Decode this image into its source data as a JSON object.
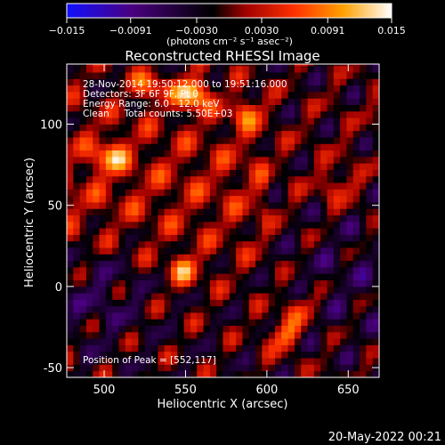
{
  "chart_data": {
    "type": "heatmap",
    "title": "Reconstructed RHESSI Image",
    "xlabel": "Heliocentric X (arcsec)",
    "ylabel": "Heliocentric Y (arcsec)",
    "xlim": [
      477,
      669
    ],
    "ylim": [
      -56,
      137
    ],
    "x_ticks": [
      "500",
      "550",
      "600",
      "650"
    ],
    "x_tick_values": [
      500,
      550,
      600,
      650
    ],
    "y_ticks": [
      "-50",
      "0",
      "50",
      "100"
    ],
    "y_tick_values": [
      -50,
      0,
      50,
      100
    ],
    "colorbar": {
      "ticks": [
        "−0.015",
        "−0.0091",
        "−0.0030",
        "0.0030",
        "0.0091",
        "0.015"
      ],
      "tick_values": [
        -0.015,
        -0.0091,
        -0.003,
        0.003,
        0.0091,
        0.015
      ],
      "range": [
        -0.015,
        0.015
      ],
      "unit_label": "(photons cm⁻² s⁻¹ asec⁻²)",
      "colors": [
        "#1010ff",
        "#4a0080",
        "#000000",
        "#c00000",
        "#ff4000",
        "#ffb000",
        "#ffffff"
      ]
    },
    "annotations": {
      "time_range": "28-Nov-2014 19:50:12.000 to 19:51:16.000",
      "detectors": "Detectors: 3F 6F 9F, Pt 0",
      "energy_range": "Energy Range: 6.0 - 12.0 keV",
      "method": "Clean     Total counts: 5.50E+03",
      "peak": "Position of Peak = [552,117]"
    },
    "peak_position": [
      552,
      117
    ],
    "hot_regions": [
      {
        "x": 502,
        "y": 78,
        "level": 0.0095
      },
      {
        "x": 526,
        "y": 122,
        "level": 0.0085
      },
      {
        "x": 552,
        "y": 117,
        "level": 0.015
      },
      {
        "x": 585,
        "y": 105,
        "level": 0.007
      },
      {
        "x": 547,
        "y": 8,
        "level": 0.008
      },
      {
        "x": 608,
        "y": -32,
        "level": 0.0095
      },
      {
        "x": 618,
        "y": -15,
        "level": 0.007
      },
      {
        "x": 642,
        "y": 60,
        "level": 0.006
      }
    ]
  },
  "footer": {
    "date_stamp": "20-May-2022 00:21"
  }
}
